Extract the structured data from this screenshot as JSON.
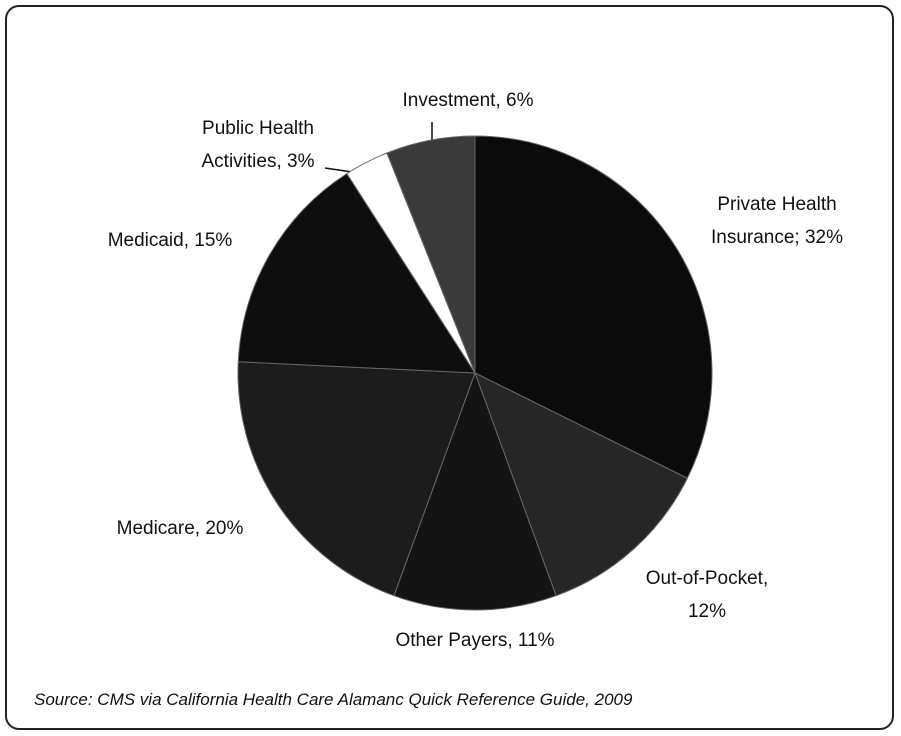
{
  "chart_data": {
    "type": "pie",
    "categories": [
      "Private Health Insurance; 32%",
      "Out-of-Pocket, 12%",
      "Other Payers, 11%",
      "Medicare, 20%",
      "Medicaid, 15%",
      "Public Health Activities, 3%",
      "Investment, 6%"
    ],
    "values": [
      32,
      12,
      11,
      20,
      15,
      3,
      6
    ],
    "colors": [
      "#0b0b0b",
      "#262626",
      "#141414",
      "#1c1c1c",
      "#0e0e0e",
      "#ffffff",
      "#3a3a3a"
    ],
    "source": "Source: CMS via California Health Care Alamanc Quick Reference Guide, 2009"
  }
}
